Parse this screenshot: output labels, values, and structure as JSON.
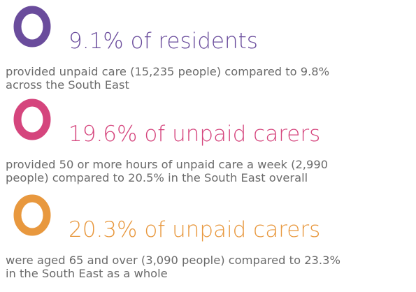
{
  "items": [
    {
      "headline": "9.1% of residents",
      "description": [
        "provided unpaid care (15,235 people) compared to 9.8%",
        "across the South East"
      ],
      "color": "#6a4c9c"
    },
    {
      "headline": "19.6% of unpaid carers",
      "description": [
        "provided 50 or more hours of unpaid care a week (2,990",
        "people) compared to 20.5% in the South East overall"
      ],
      "color": "#d5457d"
    },
    {
      "headline": "20.3% of unpaid carers",
      "description": [
        "were aged 65 and over (3,090 people) compared to 23.3%",
        "in the South East as a whole"
      ],
      "color": "#e8983e"
    }
  ]
}
